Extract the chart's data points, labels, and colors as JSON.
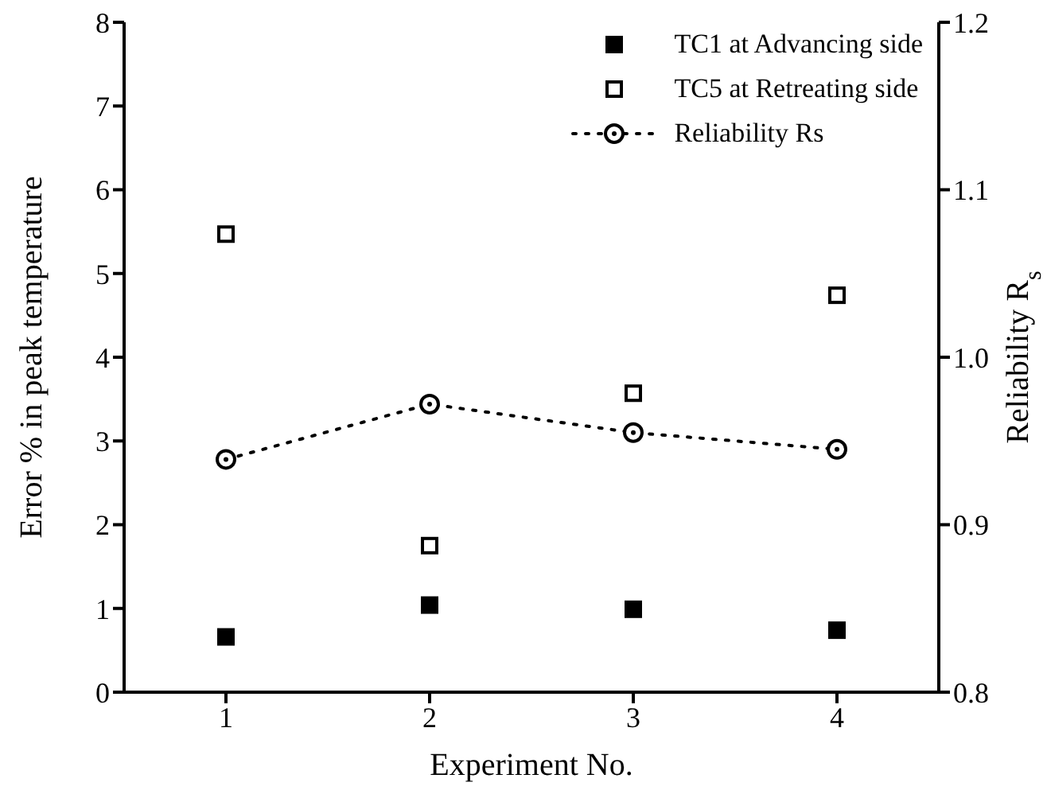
{
  "chart_data": {
    "type": "scatter",
    "xlabel": "Experiment No.",
    "ylabel": "Error % in peak temperature",
    "y2label": "Reliability R$_{s}$",
    "x": [
      1,
      2,
      3,
      4
    ],
    "series": [
      {
        "name": "TC1 at Advancing side",
        "color": "#000000",
        "marker": "square",
        "values": [
          0.66,
          1.04,
          0.99,
          0.74
        ]
      },
      {
        "name": "TC5 at Retreating side",
        "color": "#000000",
        "marker": "square",
        "values": [
          5.47,
          1.75,
          3.57,
          4.74
        ]
      },
      {
        "name": "Reliability Rs",
        "type": "line",
        "axis": "y2",
        "color": "#000000",
        "marker": "circle",
        "line_style": "dotted",
        "values": [
          0.939,
          0.972,
          0.955,
          0.945
        ]
      }
    ],
    "xlim": [
      0.5,
      4.5
    ],
    "xticks": [
      1,
      2,
      3,
      4
    ],
    "ylim": [
      0,
      8
    ],
    "yticks": [
      0,
      1,
      2,
      3,
      4,
      5,
      6,
      7,
      8
    ],
    "y2lim": [
      0.8,
      1.2
    ],
    "y2ticks": [
      0.8,
      0.9,
      {
        "value": 1,
        "label": "1.0"
      },
      1.1,
      1.2
    ],
    "legend": "top right"
  }
}
